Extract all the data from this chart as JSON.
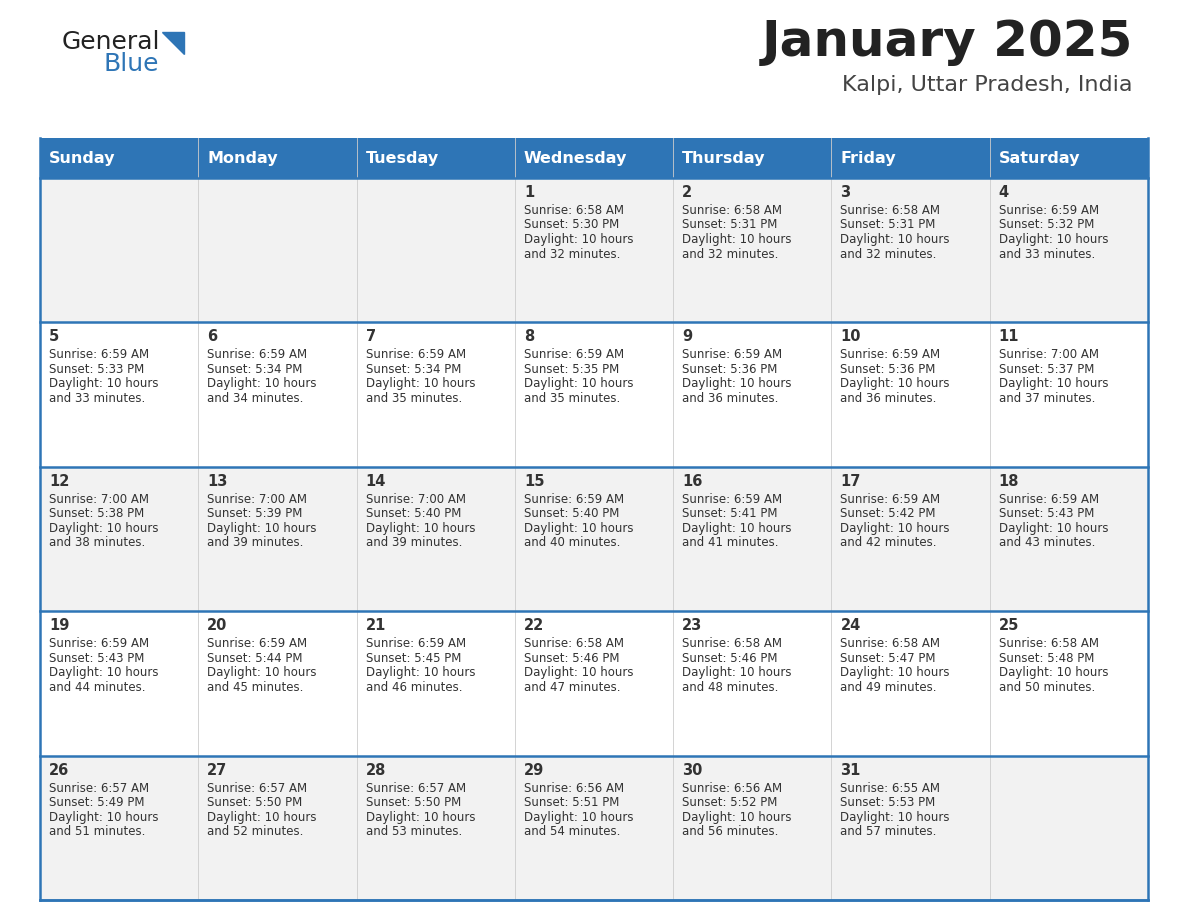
{
  "title": "January 2025",
  "subtitle": "Kalpi, Uttar Pradesh, India",
  "header_bg": "#2E75B6",
  "header_text_color": "#FFFFFF",
  "cell_bg_light": "#F2F2F2",
  "cell_bg_white": "#FFFFFF",
  "day_headers": [
    "Sunday",
    "Monday",
    "Tuesday",
    "Wednesday",
    "Thursday",
    "Friday",
    "Saturday"
  ],
  "title_color": "#222222",
  "subtitle_color": "#444444",
  "text_color": "#333333",
  "line_color": "#2E75B6",
  "logo_general_color": "#222222",
  "logo_blue_color": "#2E75B6",
  "logo_triangle_color": "#2E75B6",
  "weeks": [
    [
      {
        "day": null,
        "sunrise": null,
        "sunset": null,
        "daylight": null
      },
      {
        "day": null,
        "sunrise": null,
        "sunset": null,
        "daylight": null
      },
      {
        "day": null,
        "sunrise": null,
        "sunset": null,
        "daylight": null
      },
      {
        "day": 1,
        "sunrise": "6:58 AM",
        "sunset": "5:30 PM",
        "daylight": "10 hours and 32 minutes."
      },
      {
        "day": 2,
        "sunrise": "6:58 AM",
        "sunset": "5:31 PM",
        "daylight": "10 hours and 32 minutes."
      },
      {
        "day": 3,
        "sunrise": "6:58 AM",
        "sunset": "5:31 PM",
        "daylight": "10 hours and 32 minutes."
      },
      {
        "day": 4,
        "sunrise": "6:59 AM",
        "sunset": "5:32 PM",
        "daylight": "10 hours and 33 minutes."
      }
    ],
    [
      {
        "day": 5,
        "sunrise": "6:59 AM",
        "sunset": "5:33 PM",
        "daylight": "10 hours and 33 minutes."
      },
      {
        "day": 6,
        "sunrise": "6:59 AM",
        "sunset": "5:34 PM",
        "daylight": "10 hours and 34 minutes."
      },
      {
        "day": 7,
        "sunrise": "6:59 AM",
        "sunset": "5:34 PM",
        "daylight": "10 hours and 35 minutes."
      },
      {
        "day": 8,
        "sunrise": "6:59 AM",
        "sunset": "5:35 PM",
        "daylight": "10 hours and 35 minutes."
      },
      {
        "day": 9,
        "sunrise": "6:59 AM",
        "sunset": "5:36 PM",
        "daylight": "10 hours and 36 minutes."
      },
      {
        "day": 10,
        "sunrise": "6:59 AM",
        "sunset": "5:36 PM",
        "daylight": "10 hours and 36 minutes."
      },
      {
        "day": 11,
        "sunrise": "7:00 AM",
        "sunset": "5:37 PM",
        "daylight": "10 hours and 37 minutes."
      }
    ],
    [
      {
        "day": 12,
        "sunrise": "7:00 AM",
        "sunset": "5:38 PM",
        "daylight": "10 hours and 38 minutes."
      },
      {
        "day": 13,
        "sunrise": "7:00 AM",
        "sunset": "5:39 PM",
        "daylight": "10 hours and 39 minutes."
      },
      {
        "day": 14,
        "sunrise": "7:00 AM",
        "sunset": "5:40 PM",
        "daylight": "10 hours and 39 minutes."
      },
      {
        "day": 15,
        "sunrise": "6:59 AM",
        "sunset": "5:40 PM",
        "daylight": "10 hours and 40 minutes."
      },
      {
        "day": 16,
        "sunrise": "6:59 AM",
        "sunset": "5:41 PM",
        "daylight": "10 hours and 41 minutes."
      },
      {
        "day": 17,
        "sunrise": "6:59 AM",
        "sunset": "5:42 PM",
        "daylight": "10 hours and 42 minutes."
      },
      {
        "day": 18,
        "sunrise": "6:59 AM",
        "sunset": "5:43 PM",
        "daylight": "10 hours and 43 minutes."
      }
    ],
    [
      {
        "day": 19,
        "sunrise": "6:59 AM",
        "sunset": "5:43 PM",
        "daylight": "10 hours and 44 minutes."
      },
      {
        "day": 20,
        "sunrise": "6:59 AM",
        "sunset": "5:44 PM",
        "daylight": "10 hours and 45 minutes."
      },
      {
        "day": 21,
        "sunrise": "6:59 AM",
        "sunset": "5:45 PM",
        "daylight": "10 hours and 46 minutes."
      },
      {
        "day": 22,
        "sunrise": "6:58 AM",
        "sunset": "5:46 PM",
        "daylight": "10 hours and 47 minutes."
      },
      {
        "day": 23,
        "sunrise": "6:58 AM",
        "sunset": "5:46 PM",
        "daylight": "10 hours and 48 minutes."
      },
      {
        "day": 24,
        "sunrise": "6:58 AM",
        "sunset": "5:47 PM",
        "daylight": "10 hours and 49 minutes."
      },
      {
        "day": 25,
        "sunrise": "6:58 AM",
        "sunset": "5:48 PM",
        "daylight": "10 hours and 50 minutes."
      }
    ],
    [
      {
        "day": 26,
        "sunrise": "6:57 AM",
        "sunset": "5:49 PM",
        "daylight": "10 hours and 51 minutes."
      },
      {
        "day": 27,
        "sunrise": "6:57 AM",
        "sunset": "5:50 PM",
        "daylight": "10 hours and 52 minutes."
      },
      {
        "day": 28,
        "sunrise": "6:57 AM",
        "sunset": "5:50 PM",
        "daylight": "10 hours and 53 minutes."
      },
      {
        "day": 29,
        "sunrise": "6:56 AM",
        "sunset": "5:51 PM",
        "daylight": "10 hours and 54 minutes."
      },
      {
        "day": 30,
        "sunrise": "6:56 AM",
        "sunset": "5:52 PM",
        "daylight": "10 hours and 56 minutes."
      },
      {
        "day": 31,
        "sunrise": "6:55 AM",
        "sunset": "5:53 PM",
        "daylight": "10 hours and 57 minutes."
      },
      {
        "day": null,
        "sunrise": null,
        "sunset": null,
        "daylight": null
      }
    ]
  ]
}
